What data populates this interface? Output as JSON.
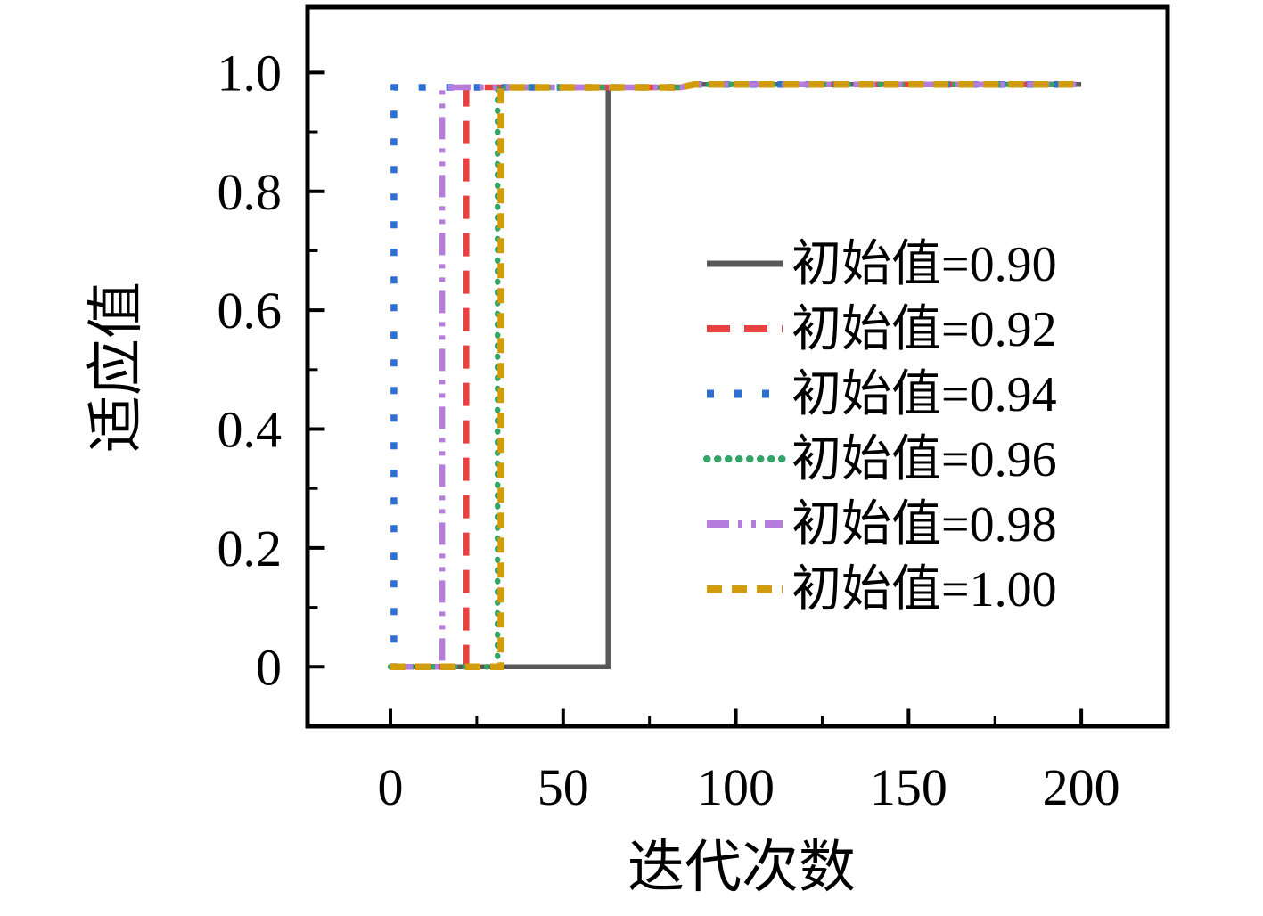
{
  "figure": {
    "background_color": "#ffffff",
    "axis_color": "#000000",
    "text_color": "#000000"
  },
  "chart_data": {
    "type": "line",
    "subtype": "step-convergence-curves",
    "title": "",
    "xlabel": "迭代次数",
    "ylabel": "适应值",
    "xlim": [
      -24,
      225
    ],
    "ylim": [
      -0.1,
      1.11
    ],
    "grid": false,
    "legend_position": "inside-center-right",
    "x_major_ticks": [
      0,
      50,
      100,
      150,
      200
    ],
    "x_major_tick_labels": [
      "0",
      "50",
      "100",
      "150",
      "200"
    ],
    "x_minor_ticks": [
      25,
      75,
      125,
      175
    ],
    "y_major_ticks": [
      0,
      0.2,
      0.4,
      0.6,
      0.8,
      1.0
    ],
    "y_major_tick_labels": [
      "0",
      "0.2",
      "0.4",
      "0.6",
      "0.8",
      "1.0"
    ],
    "y_minor_ticks": [
      0.1,
      0.3,
      0.5,
      0.7,
      0.9
    ],
    "converged_fitness": 0.98,
    "series": [
      {
        "name": "初始值=0.90",
        "color": "#595959",
        "style": "solid",
        "line_width": 5.5,
        "jump_iteration": 63,
        "points": [
          [
            0,
            0
          ],
          [
            63,
            0
          ],
          [
            63,
            0.975
          ],
          [
            84,
            0.975
          ],
          [
            88,
            0.98
          ],
          [
            200,
            0.98
          ]
        ]
      },
      {
        "name": "初始值=0.92",
        "color": "#e8413f",
        "style": "dashed",
        "line_width": 6.5,
        "jump_iteration": 22,
        "points": [
          [
            0,
            0
          ],
          [
            22,
            0
          ],
          [
            22,
            0.975
          ],
          [
            84,
            0.975
          ],
          [
            88,
            0.98
          ],
          [
            200,
            0.98
          ]
        ]
      },
      {
        "name": "初始值=0.94",
        "color": "#2e6fd2",
        "style": "sparse-dot",
        "line_width": 7.5,
        "jump_iteration": 1,
        "points": [
          [
            0,
            0
          ],
          [
            1,
            0
          ],
          [
            1,
            0.975
          ],
          [
            84,
            0.975
          ],
          [
            88,
            0.98
          ],
          [
            200,
            0.98
          ]
        ]
      },
      {
        "name": "初始值=0.96",
        "color": "#31a466",
        "style": "dense-dot",
        "line_width": 6.5,
        "jump_iteration": 31,
        "points": [
          [
            0,
            0
          ],
          [
            31,
            0
          ],
          [
            31,
            0.975
          ],
          [
            84,
            0.975
          ],
          [
            88,
            0.98
          ],
          [
            200,
            0.98
          ]
        ]
      },
      {
        "name": "初始值=0.98",
        "color": "#b57cdc",
        "style": "dash-dot-dot",
        "line_width": 6.5,
        "jump_iteration": 15,
        "points": [
          [
            0,
            0
          ],
          [
            15,
            0
          ],
          [
            15,
            0.975
          ],
          [
            84,
            0.975
          ],
          [
            88,
            0.98
          ],
          [
            200,
            0.98
          ]
        ]
      },
      {
        "name": "初始值=1.00",
        "color": "#d19d0d",
        "style": "short-dash",
        "line_width": 7.5,
        "jump_iteration": 32,
        "points": [
          [
            0,
            0
          ],
          [
            32,
            0
          ],
          [
            32,
            0.975
          ],
          [
            84,
            0.975
          ],
          [
            88,
            0.98
          ],
          [
            200,
            0.98
          ]
        ]
      }
    ]
  }
}
